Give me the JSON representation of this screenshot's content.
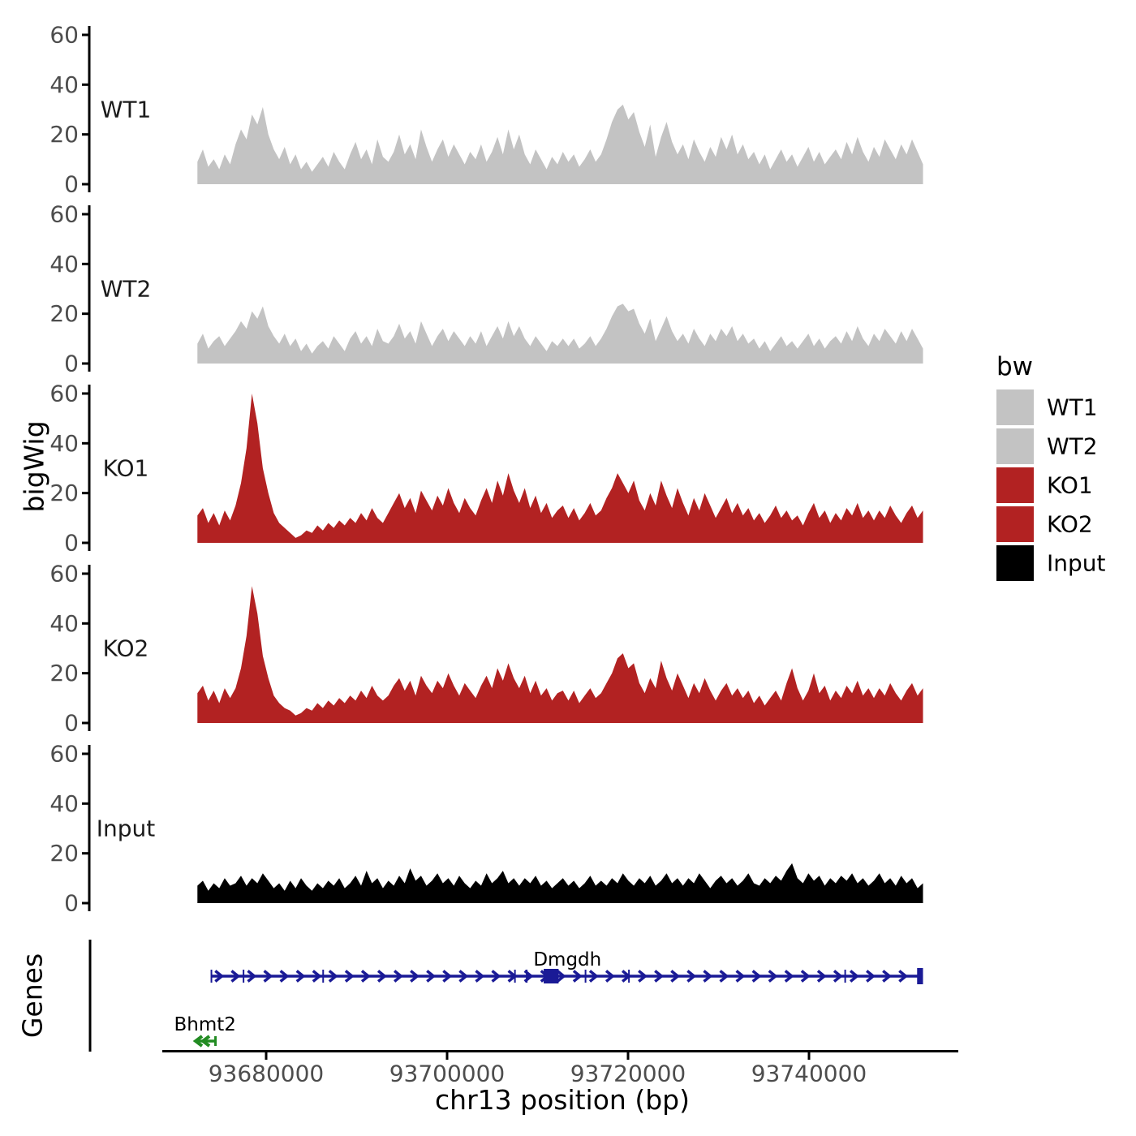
{
  "chart_data": {
    "type": "area",
    "description": "Genome browser style ChIP-seq bigWig coverage tracks with gene models",
    "x_start_bp": 93672400,
    "x_end_bp": 93752600,
    "x_axis": {
      "title": "chr13 position (bp)",
      "ticks": [
        {
          "bp": 93680000,
          "label": "93680000"
        },
        {
          "bp": 93700000,
          "label": "93700000"
        },
        {
          "bp": 93720000,
          "label": "93720000"
        },
        {
          "bp": 93740000,
          "label": "93740000"
        }
      ]
    },
    "y_axis": {
      "title": "bigWig",
      "ticks": [
        0,
        20,
        40,
        60
      ],
      "ylim": [
        0,
        63
      ]
    },
    "series": [
      {
        "name": "WT1",
        "color": "#c3c3c3",
        "values": [
          9,
          14,
          7,
          10,
          6,
          12,
          8,
          16,
          22,
          18,
          28,
          24,
          31,
          20,
          14,
          10,
          15,
          8,
          12,
          6,
          9,
          5,
          8,
          11,
          7,
          13,
          9,
          6,
          12,
          17,
          10,
          14,
          8,
          18,
          11,
          9,
          13,
          20,
          12,
          16,
          10,
          22,
          15,
          9,
          14,
          18,
          11,
          16,
          12,
          8,
          13,
          10,
          16,
          9,
          13,
          19,
          12,
          22,
          14,
          20,
          12,
          8,
          14,
          10,
          6,
          11,
          8,
          13,
          9,
          12,
          7,
          10,
          14,
          9,
          12,
          18,
          25,
          30,
          32,
          26,
          29,
          21,
          15,
          24,
          11,
          19,
          25,
          17,
          12,
          16,
          10,
          18,
          13,
          9,
          15,
          11,
          19,
          14,
          20,
          12,
          16,
          10,
          13,
          8,
          12,
          6,
          10,
          14,
          9,
          12,
          7,
          11,
          15,
          9,
          13,
          8,
          11,
          14,
          10,
          17,
          12,
          19,
          13,
          9,
          15,
          11,
          18,
          14,
          10,
          16,
          12,
          18,
          13,
          8
        ]
      },
      {
        "name": "WT2",
        "color": "#c3c3c3",
        "values": [
          8,
          12,
          6,
          9,
          11,
          7,
          10,
          13,
          17,
          14,
          21,
          18,
          23,
          15,
          11,
          8,
          12,
          7,
          10,
          5,
          8,
          4,
          7,
          9,
          6,
          11,
          8,
          5,
          10,
          13,
          8,
          11,
          7,
          14,
          9,
          8,
          11,
          16,
          10,
          13,
          8,
          17,
          12,
          7,
          11,
          14,
          9,
          13,
          10,
          7,
          11,
          8,
          13,
          7,
          11,
          15,
          10,
          17,
          11,
          15,
          10,
          7,
          11,
          8,
          5,
          9,
          7,
          10,
          7,
          10,
          6,
          8,
          11,
          7,
          10,
          14,
          19,
          23,
          24,
          21,
          22,
          16,
          12,
          18,
          9,
          14,
          19,
          13,
          9,
          12,
          8,
          14,
          10,
          7,
          12,
          9,
          14,
          11,
          15,
          9,
          12,
          8,
          10,
          6,
          9,
          5,
          8,
          11,
          7,
          9,
          6,
          9,
          12,
          7,
          10,
          6,
          9,
          11,
          8,
          13,
          9,
          15,
          10,
          7,
          12,
          9,
          14,
          11,
          8,
          13,
          9,
          14,
          10,
          6
        ]
      },
      {
        "name": "KO1",
        "color": "#b22222",
        "values": [
          11,
          14,
          8,
          12,
          7,
          13,
          9,
          15,
          24,
          38,
          60,
          48,
          30,
          20,
          12,
          8,
          6,
          4,
          2,
          3,
          5,
          4,
          7,
          5,
          8,
          6,
          9,
          7,
          10,
          8,
          12,
          9,
          14,
          10,
          8,
          12,
          16,
          20,
          14,
          18,
          12,
          21,
          17,
          13,
          19,
          15,
          22,
          16,
          12,
          18,
          14,
          11,
          17,
          22,
          16,
          25,
          19,
          28,
          21,
          16,
          22,
          14,
          19,
          12,
          16,
          10,
          13,
          15,
          10,
          14,
          9,
          12,
          16,
          11,
          13,
          18,
          22,
          28,
          24,
          20,
          25,
          17,
          13,
          20,
          15,
          25,
          19,
          14,
          22,
          16,
          11,
          18,
          13,
          20,
          15,
          10,
          14,
          18,
          12,
          16,
          11,
          14,
          9,
          12,
          8,
          11,
          15,
          10,
          13,
          9,
          11,
          7,
          12,
          16,
          10,
          13,
          8,
          12,
          9,
          14,
          11,
          16,
          10,
          13,
          9,
          13,
          10,
          15,
          11,
          8,
          12,
          15,
          10,
          13
        ]
      },
      {
        "name": "KO2",
        "color": "#b22222",
        "values": [
          12,
          15,
          9,
          13,
          8,
          14,
          10,
          14,
          22,
          35,
          55,
          44,
          27,
          18,
          11,
          8,
          6,
          5,
          3,
          4,
          6,
          5,
          8,
          6,
          9,
          7,
          10,
          8,
          11,
          9,
          13,
          10,
          15,
          11,
          9,
          11,
          15,
          18,
          13,
          17,
          11,
          19,
          15,
          12,
          17,
          14,
          20,
          15,
          11,
          16,
          13,
          10,
          15,
          19,
          14,
          22,
          17,
          24,
          18,
          14,
          19,
          12,
          17,
          11,
          14,
          9,
          12,
          13,
          9,
          13,
          8,
          11,
          14,
          10,
          12,
          16,
          20,
          26,
          28,
          22,
          24,
          16,
          12,
          18,
          14,
          25,
          18,
          13,
          20,
          15,
          10,
          16,
          12,
          18,
          13,
          9,
          13,
          16,
          11,
          14,
          10,
          13,
          8,
          11,
          7,
          10,
          13,
          9,
          16,
          22,
          14,
          9,
          13,
          20,
          12,
          15,
          9,
          13,
          10,
          15,
          12,
          17,
          11,
          14,
          10,
          14,
          11,
          16,
          12,
          9,
          13,
          16,
          11,
          14
        ]
      },
      {
        "name": "Input",
        "color": "#000000",
        "values": [
          7,
          9,
          5,
          8,
          6,
          10,
          7,
          8,
          11,
          7,
          10,
          8,
          12,
          9,
          6,
          8,
          5,
          9,
          6,
          10,
          7,
          5,
          8,
          6,
          9,
          7,
          10,
          6,
          8,
          11,
          7,
          13,
          8,
          10,
          6,
          9,
          7,
          11,
          8,
          14,
          9,
          11,
          7,
          9,
          12,
          8,
          10,
          7,
          11,
          8,
          6,
          9,
          7,
          12,
          8,
          10,
          13,
          8,
          10,
          7,
          10,
          8,
          11,
          7,
          9,
          6,
          8,
          10,
          7,
          9,
          6,
          8,
          11,
          7,
          9,
          7,
          10,
          8,
          12,
          9,
          7,
          10,
          8,
          11,
          7,
          9,
          12,
          8,
          10,
          7,
          10,
          8,
          12,
          9,
          6,
          9,
          11,
          8,
          10,
          7,
          9,
          12,
          8,
          7,
          10,
          8,
          11,
          9,
          13,
          16,
          10,
          8,
          12,
          9,
          11,
          7,
          10,
          8,
          11,
          9,
          12,
          8,
          10,
          7,
          9,
          12,
          8,
          10,
          7,
          11,
          8,
          10,
          6,
          8
        ]
      }
    ],
    "genes": {
      "axis_label": "Genes",
      "items": [
        {
          "name": "Dmgdh",
          "color": "#1a1a96",
          "strand": "+",
          "start_bp": 93673900,
          "end_bp": 93752600,
          "label_bp": 93713300,
          "exons_bp": [
            93673950,
            93677500,
            93686300,
            93707500,
            93708800,
            93715300,
            93720100,
            93744000
          ],
          "thick_exons_bp": [
            93710900,
            93711300,
            93711700,
            93712100
          ],
          "end_block_bp": [
            93751950,
            93752600
          ]
        },
        {
          "name": "Bhmt2",
          "color": "#228b22",
          "strand": "-",
          "start_bp": 93672200,
          "end_bp": 93674400,
          "label_bp": 93673250
        }
      ]
    },
    "legend": {
      "title": "bw",
      "position": "right",
      "items": [
        {
          "label": "WT1",
          "color": "#c3c3c3"
        },
        {
          "label": "WT2",
          "color": "#c3c3c3"
        },
        {
          "label": "KO1",
          "color": "#b22222"
        },
        {
          "label": "KO2",
          "color": "#b22222"
        },
        {
          "label": "Input",
          "color": "#000000"
        }
      ]
    },
    "style": {
      "tick_label_color": "#4d4d4d",
      "track_label_color": "#1a1a1a",
      "axis_color": "#000000"
    }
  }
}
